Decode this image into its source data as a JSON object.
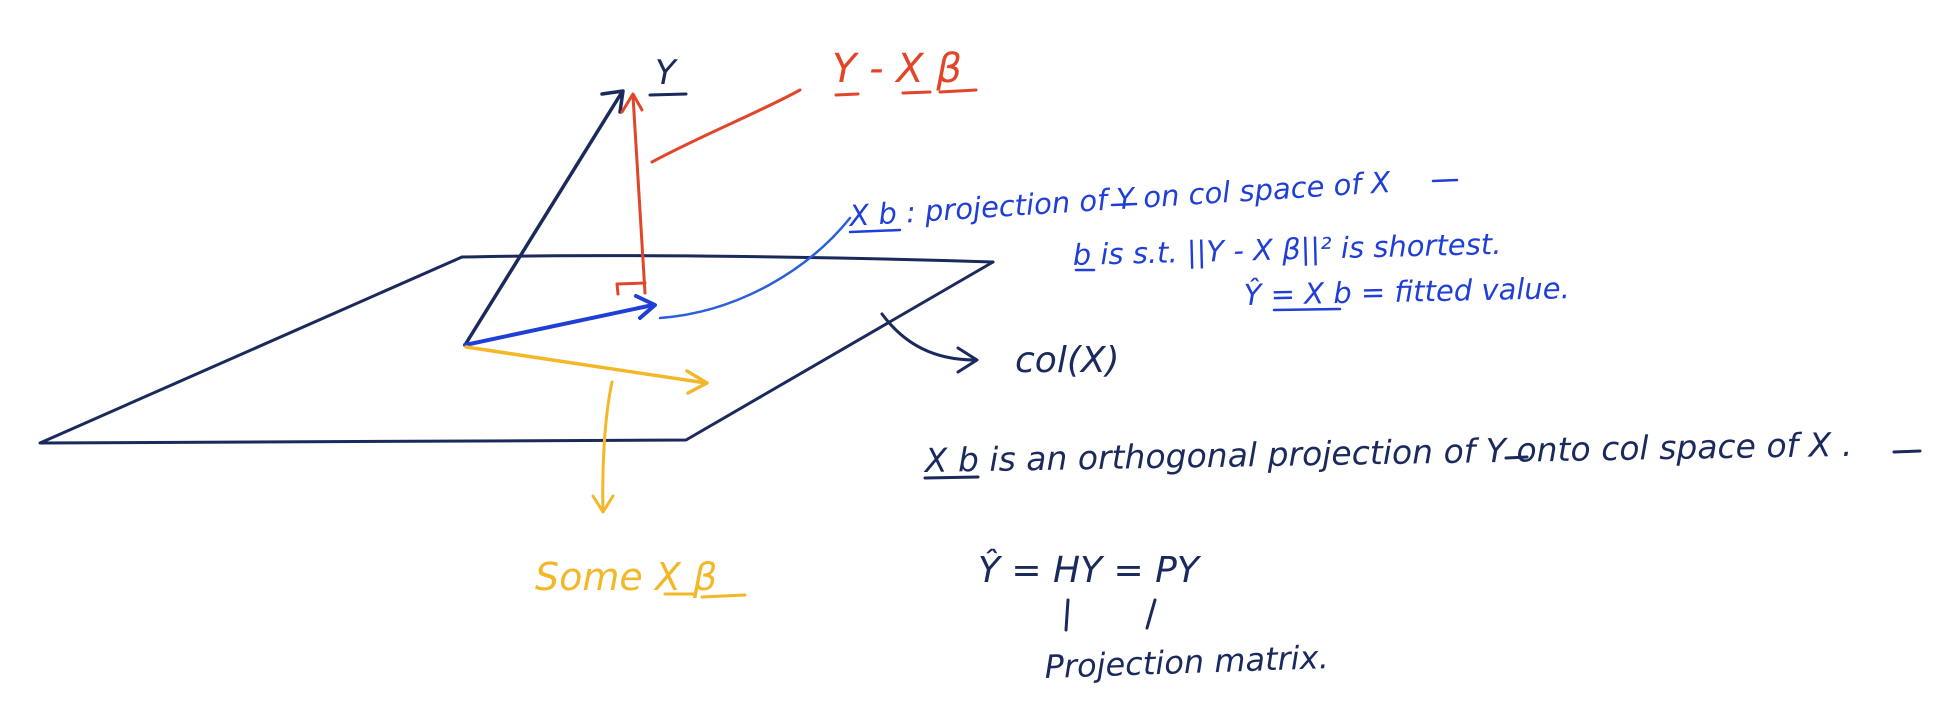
{
  "colors": {
    "navy": "#1b2a5c",
    "red": "#e2462a",
    "blue": "#1f3fd6",
    "mid_blue": "#2b5fd9",
    "yellow": "#f2b82a"
  },
  "labels": {
    "y_vector": "Y",
    "residual": "Y - X β",
    "xb_projection_note": "X b : projection of Y on col space of X",
    "b_condition": "b is s.t. ||Y - X β||² is shortest.",
    "fitted_value": "Ŷ = X b = fitted value.",
    "col_space": "col(X)",
    "orthogonal_statement": "X b is an orthogonal projection of Y onto col space of X .",
    "hat_equation": "Ŷ = HY = PY",
    "projection_matrix": "Projection matrix.",
    "some_xbeta": "Some X β"
  }
}
